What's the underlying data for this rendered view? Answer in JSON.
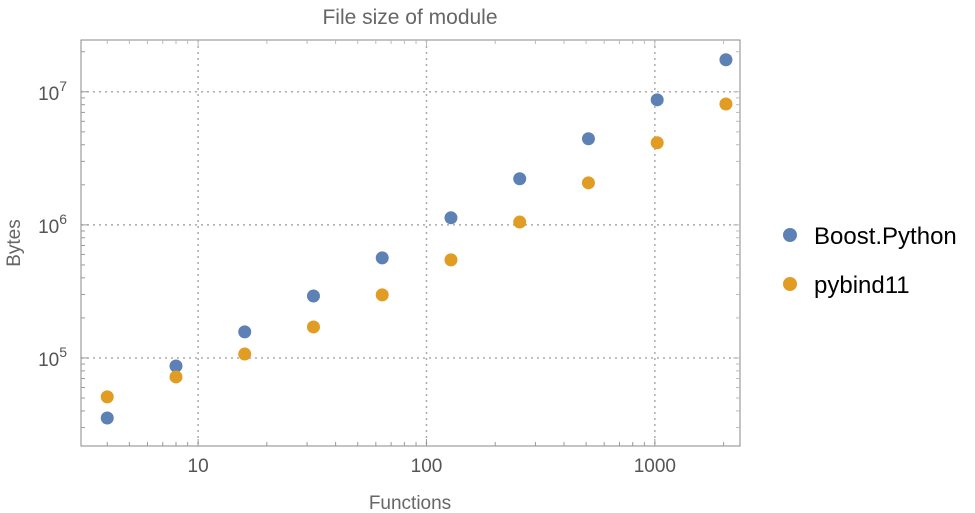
{
  "chart_data": {
    "type": "scatter",
    "title": "File size of module",
    "xlabel": "Functions",
    "ylabel": "Bytes",
    "x_scale": "log",
    "y_scale": "log",
    "xlim": [
      3.07,
      2360
    ],
    "ylim": [
      21800,
      24500000
    ],
    "grid": true,
    "legend_position": "right",
    "x_ticks": [
      {
        "value": 10,
        "label": "10"
      },
      {
        "value": 100,
        "label": "100"
      },
      {
        "value": 1000,
        "label": "1000"
      }
    ],
    "y_ticks": [
      {
        "value": 100000,
        "base": "10",
        "exp": "5"
      },
      {
        "value": 1000000,
        "base": "10",
        "exp": "6"
      },
      {
        "value": 10000000,
        "base": "10",
        "exp": "7"
      }
    ],
    "x": [
      4,
      8,
      16,
      32,
      64,
      128,
      256,
      512,
      1024,
      2048
    ],
    "series": [
      {
        "name": "Boost.Python",
        "color": "#5E81B5",
        "values": [
          35400,
          87000,
          157000,
          292000,
          565000,
          1130000,
          2220000,
          4440000,
          8700000,
          17400000
        ]
      },
      {
        "name": "pybind11",
        "color": "#E19C24",
        "values": [
          51000,
          72000,
          107000,
          171000,
          298000,
          546000,
          1050000,
          2070000,
          4140000,
          8100000
        ]
      }
    ]
  }
}
